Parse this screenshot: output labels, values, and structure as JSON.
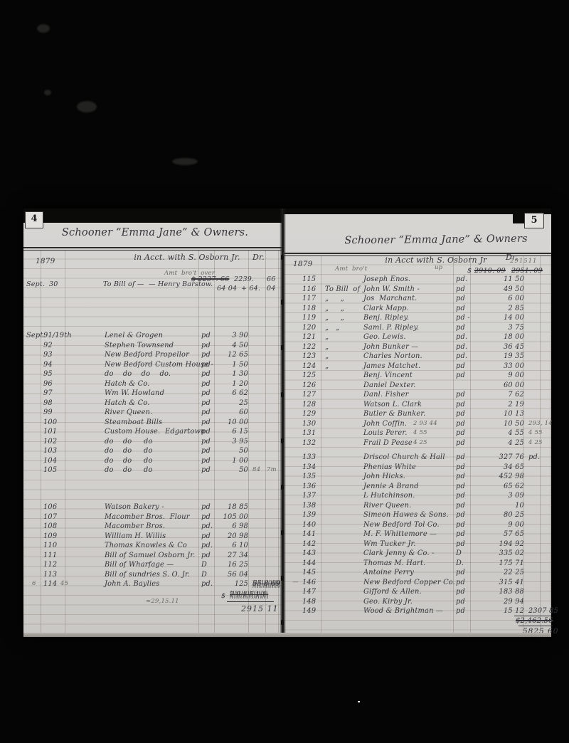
{
  "document": {
    "kind": "scanned handwritten ledger, double page spread",
    "ink_color": "#34343a",
    "pencil_color": "#66665f",
    "paper_color": "#d4d3d0"
  },
  "left_page": {
    "page_number": "4",
    "title": "Schooner “Emma Jane” & Owners.",
    "year": "1879",
    "account_line": "in Acct. with S. Osborn Jr.",
    "dr_label": "Dr.",
    "brought_forward": {
      "pencil_note": "Amt  bro't  over",
      "month": "Sept.",
      "day": "30",
      "entry": "To Bill of —  — Henry Barstow.",
      "amount_struck": "$ 2237. 66",
      "amount_revised": "2239.",
      "amount_cents": "66",
      "line2": "64 04",
      "line2_revised": "+ 64.",
      "line2_cents": "04"
    },
    "sections": [
      {
        "rows": [
          {
            "d": "Sept.",
            "n": "91/19th",
            "name": "Lenel & Grogen",
            "pd": "pd",
            "amt": "3 90"
          },
          {
            "n": "92",
            "name": "Stephen Townsend",
            "pd": "pd",
            "amt": "4 50"
          },
          {
            "n": "93",
            "name": "New Bedford Propellor",
            "pd": "pd",
            "amt": "12 65"
          },
          {
            "n": "94",
            "name": "New Bedford Custom House -",
            "pd": "pd",
            "amt": "1 50"
          },
          {
            "n": "95",
            "name": "do    do    do    do.",
            "pd": "pd",
            "amt": "1 30"
          },
          {
            "n": "96",
            "name": "Hatch & Co.",
            "pd": "pd",
            "amt": "1 20"
          },
          {
            "n": "97",
            "name": "Wm W. Howland",
            "pd": "pd",
            "amt": "6 62"
          },
          {
            "n": "98",
            "name": "Hatch & Co.",
            "pd": "pd",
            "amt": "25"
          },
          {
            "n": "99",
            "name": "River Queen.",
            "pd": "pd",
            "amt": "60"
          },
          {
            "n": "100",
            "name": "Steamboat Bills",
            "pd": "pd",
            "amt": "10 00"
          },
          {
            "n": "101",
            "name": "Custom House.  Edgartown",
            "pd": "pd",
            "amt": "6 15"
          },
          {
            "n": "102",
            "name": "do    do     do",
            "pd": "pd",
            "amt": "3 95"
          },
          {
            "n": "103",
            "name": "do    do     do",
            "pd": "pd",
            "amt": "50"
          },
          {
            "n": "104",
            "name": "do    do     do",
            "pd": "pd",
            "amt": "1 00"
          },
          {
            "n": "105",
            "name": "do    do     do",
            "pd": "pd",
            "amt": "50",
            "post": "84   7m",
            "pp": true
          }
        ]
      },
      {
        "rows": [
          {
            "n": "106",
            "name": "Watson Bakery -",
            "pd": "pd",
            "amt": "18 85"
          },
          {
            "n": "107",
            "name": "Macomber Bros.  Flour",
            "pd": "pd",
            "amt": "105 00"
          },
          {
            "n": "108",
            "name": "Macomber Bros.",
            "pd": "pd.",
            "amt": "6 98"
          },
          {
            "n": "109",
            "name": "William H. Willis",
            "pd": "pd",
            "amt": "20 98"
          },
          {
            "n": "110",
            "name": "Thomas Knowles & Co",
            "pd": "pd.",
            "amt": "6 10"
          },
          {
            "n": "111",
            "name": "Bill of Samuel Osborn Jr.",
            "pd": "pd",
            "amt": "27 34"
          },
          {
            "n": "112",
            "name": "Bill of Wharfage —",
            "pd": "D",
            "amt": "16 25"
          },
          {
            "n": "113",
            "name": "Bill of sundries S. O. Jr.",
            "pd": "D",
            "amt": "56 04"
          },
          {
            "m": "6",
            "n": "114",
            "nn": "45",
            "name": "John A. Baylies",
            "pd": "pd.",
            "amt": "125",
            "post": "55 8 69",
            "ps": true
          }
        ]
      }
    ],
    "footer": {
      "pencil_note": "≈29,15.11",
      "currency": "$",
      "scribbled_total": "291511",
      "total": "2915 11"
    }
  },
  "right_page": {
    "page_number": "5",
    "title": "Schooner “Emma Jane” & Owners",
    "year": "1879",
    "account_line": "in Acct with S. Osborn Jr",
    "dr_label": "Dr.",
    "brought_forward": {
      "pencil_note": "Amt  bro't",
      "pencil_note2": "up",
      "currency": "$",
      "struck_first": "2910. 09",
      "pencil_revision": "291511",
      "struck_second": "2951. 09"
    },
    "sections": [
      {
        "rows": [
          {
            "n": "115",
            "name": "Joseph Enos.",
            "pd": "pd.",
            "amt": "11 50"
          },
          {
            "n": "116",
            "b": "To Bill  of",
            "name": "John W. Smith -",
            "pd": "pd",
            "amt": "49 50"
          },
          {
            "n": "117",
            "b": "„     „",
            "name": "Jos  Marchant.",
            "pd": "pd",
            "amt": "6 00"
          },
          {
            "n": "118",
            "b": "„     „",
            "name": "Clark Mapp.",
            "pd": "pd",
            "amt": "2 85"
          },
          {
            "n": "119",
            "b": "„     „",
            "name": "Benj. Ripley.",
            "pd": "pd -",
            "amt": "14 00"
          },
          {
            "n": "120",
            "b": "„   „",
            "name": "Saml. P. Ripley.",
            "pd": "pd",
            "amt": "3 75"
          },
          {
            "n": "121",
            "b": "„",
            "name": "Geo. Lewis.",
            "pd": "pd.",
            "amt": "18 00"
          },
          {
            "n": "122",
            "b": "„",
            "name": "John Bunker —",
            "pd": "pd.",
            "amt": "36 45"
          },
          {
            "n": "123",
            "b": "„",
            "name": "Charles Norton.",
            "pd": "pd.",
            "amt": "19 35"
          },
          {
            "n": "124",
            "b": "„",
            "name": "James Matchet.",
            "pd": "pd",
            "amt": "33 00"
          },
          {
            "n": "125",
            "name": "Benj. Vincent",
            "pd": "pd",
            "amt": "9 00"
          },
          {
            "n": "126",
            "name": "Daniel Dexter.",
            "amt": "60 00"
          },
          {
            "n": "127",
            "name": "Danl. Fisher",
            "pd": "pd",
            "amt": "7 62"
          },
          {
            "n": "128",
            "name": "Watson L. Clark",
            "pd": "pd",
            "amt": "2 19"
          },
          {
            "n": "129",
            "name": "Butler & Bunker.",
            "pd": "pd",
            "amt": "10 13"
          },
          {
            "n": "130",
            "name": "John Coffin.",
            "pre": "2 93 44",
            "pd": "pd",
            "amt": "10 50",
            "post": "293, 14",
            "pp": true
          },
          {
            "n": "131",
            "name": "Louis Perer.",
            "pre": "4 55",
            "pd": "pd",
            "amt": "4 55",
            "post": "4 55",
            "pp": true
          },
          {
            "n": "132",
            "name": "Frail D Pease -",
            "pre": "4 25",
            "pd": "pd",
            "amt": "4 25",
            "post": "4 25",
            "pp": true
          }
        ]
      },
      {
        "rows": [
          {
            "n": "133",
            "name": "Driscol Church & Hall",
            "pd": "pd",
            "amt": "327 76",
            "post": "pd."
          },
          {
            "n": "134",
            "name": "Phenias White",
            "pd": "pd",
            "amt": "34 65"
          },
          {
            "n": "135",
            "name": "John Hicks.",
            "pd": "pd",
            "amt": "452 98"
          },
          {
            "n": "136",
            "name": "Jennie A Brand",
            "pd": "pd",
            "amt": "65 62"
          },
          {
            "n": "137",
            "name": "L Hutchinson.",
            "pd": "pd",
            "amt": "3 09"
          },
          {
            "n": "138",
            "name": "River Queen.",
            "pd": "pd",
            "amt": "10"
          },
          {
            "n": "139",
            "name": "Simeon Hawes & Sons.",
            "pd": "pd",
            "amt": "80 25"
          },
          {
            "n": "140",
            "name": "New Bedford Tol Co.",
            "pd": "pd",
            "amt": "9 00"
          },
          {
            "n": "141",
            "name": "M. F. Whittemore —",
            "pd": "pd",
            "amt": "57 65"
          },
          {
            "n": "142",
            "name": "Wm Tucker Jr.",
            "pd": "pd",
            "amt": "194 92"
          },
          {
            "n": "143",
            "name": "Clark Jenny & Co. -",
            "pd": "D",
            "amt": "335 02"
          },
          {
            "n": "144",
            "name": "Thomas M. Hart.",
            "pd": "D.",
            "amt": "175 71"
          },
          {
            "n": "145",
            "name": "Antoine Perry",
            "pd": "pd",
            "amt": "22 25"
          },
          {
            "m": "—",
            "n": "146",
            "name": "New Bedford Copper Co.",
            "pd": "pd",
            "amt": "315 41"
          },
          {
            "n": "147",
            "name": "Gifford & Allen.",
            "pd": "pd",
            "amt": "183 88"
          },
          {
            "n": "148",
            "name": "Geo. Kirby Jr.",
            "pd": "pd",
            "amt": "29 94"
          },
          {
            "n": "149",
            "name": "Wood & Brightman —",
            "pd": "pd",
            "amt": "15 12",
            "post": "2307 85"
          }
        ]
      }
    ],
    "footer": {
      "struck_total": "$2,462.56",
      "total": "5825 60"
    }
  }
}
